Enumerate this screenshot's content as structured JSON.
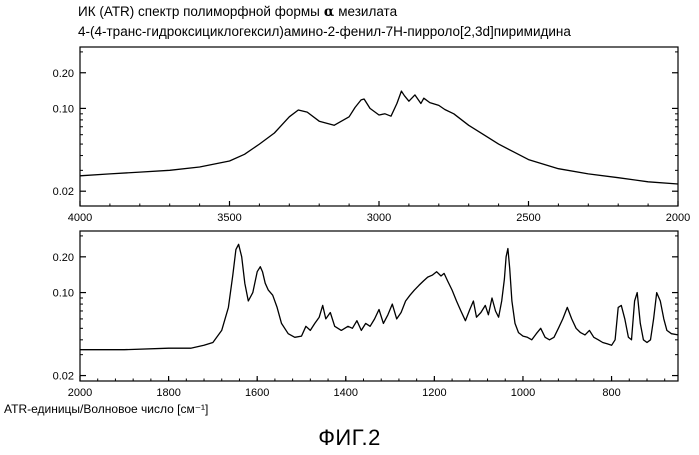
{
  "title_line1_prefix": "ИК (ATR) спектр полиморфной формы",
  "title_line1_symbol": "α",
  "title_line1_suffix": "мезилата",
  "title_line2": "4-(4-транс-гидроксициклогексил)амино-2-фенил-7Н-пирроло[2,3d]пиримидина",
  "x_axis_unit_label": "ATR-единицы/Волновое число [см⁻¹]",
  "figure_caption": "ФИГ.2",
  "chart_data": [
    {
      "type": "line",
      "xlim": [
        4000,
        2000
      ],
      "ylim": [
        0.015,
        0.33
      ],
      "y_scale": "log",
      "grid": false,
      "x_ticks": [
        4000,
        3500,
        3000,
        2500,
        2000
      ],
      "x_tick_labels": [
        "4000",
        "3500",
        "3000",
        "2500",
        "2000"
      ],
      "y_ticks": [
        0.02,
        0.1,
        0.2
      ],
      "y_tick_labels": [
        "0.02",
        "0.10",
        "0.20"
      ],
      "series": [
        {
          "x": [
            4000,
            3900,
            3800,
            3700,
            3600,
            3500,
            3450,
            3400,
            3350,
            3300,
            3270,
            3240,
            3200,
            3150,
            3100,
            3080,
            3060,
            3050,
            3030,
            3000,
            2980,
            2960,
            2940,
            2925,
            2915,
            2900,
            2880,
            2860,
            2850,
            2830,
            2800,
            2780,
            2750,
            2700,
            2650,
            2600,
            2550,
            2500,
            2400,
            2300,
            2200,
            2100,
            2000
          ],
          "y": [
            0.027,
            0.028,
            0.029,
            0.03,
            0.032,
            0.036,
            0.041,
            0.05,
            0.062,
            0.085,
            0.097,
            0.093,
            0.078,
            0.072,
            0.085,
            0.102,
            0.118,
            0.12,
            0.1,
            0.088,
            0.09,
            0.086,
            0.11,
            0.14,
            0.128,
            0.115,
            0.13,
            0.11,
            0.122,
            0.112,
            0.106,
            0.098,
            0.09,
            0.072,
            0.06,
            0.05,
            0.043,
            0.037,
            0.031,
            0.028,
            0.026,
            0.024,
            0.023
          ]
        }
      ]
    },
    {
      "type": "line",
      "xlim": [
        2000,
        650
      ],
      "ylim": [
        0.018,
        0.33
      ],
      "y_scale": "log",
      "grid": false,
      "x_ticks": [
        2000,
        1800,
        1600,
        1400,
        1200,
        1000,
        800
      ],
      "x_tick_labels": [
        "2000",
        "1800",
        "1600",
        "1400",
        "1200",
        "1000",
        "800"
      ],
      "y_ticks": [
        0.02,
        0.1,
        0.2
      ],
      "y_tick_labels": [
        "0.02",
        "0.10",
        "0.20"
      ],
      "series": [
        {
          "x": [
            2000,
            1900,
            1800,
            1750,
            1720,
            1700,
            1680,
            1665,
            1655,
            1648,
            1642,
            1635,
            1628,
            1620,
            1610,
            1600,
            1593,
            1588,
            1582,
            1575,
            1565,
            1555,
            1545,
            1530,
            1515,
            1500,
            1490,
            1480,
            1470,
            1460,
            1452,
            1445,
            1435,
            1425,
            1410,
            1395,
            1385,
            1375,
            1365,
            1355,
            1345,
            1335,
            1325,
            1315,
            1305,
            1295,
            1285,
            1275,
            1265,
            1255,
            1245,
            1235,
            1225,
            1215,
            1205,
            1195,
            1185,
            1178,
            1170,
            1160,
            1150,
            1140,
            1130,
            1120,
            1112,
            1105,
            1095,
            1085,
            1078,
            1070,
            1062,
            1055,
            1048,
            1042,
            1038,
            1034,
            1030,
            1025,
            1018,
            1010,
            1000,
            990,
            980,
            970,
            960,
            950,
            940,
            930,
            920,
            910,
            900,
            890,
            880,
            870,
            860,
            850,
            840,
            830,
            820,
            810,
            800,
            792,
            785,
            778,
            770,
            762,
            755,
            748,
            742,
            735,
            728,
            720,
            712,
            705,
            698,
            690,
            682,
            675,
            665,
            650
          ],
          "y": [
            0.033,
            0.033,
            0.034,
            0.034,
            0.036,
            0.038,
            0.048,
            0.075,
            0.14,
            0.23,
            0.255,
            0.2,
            0.12,
            0.085,
            0.1,
            0.15,
            0.165,
            0.15,
            0.12,
            0.105,
            0.095,
            0.075,
            0.055,
            0.045,
            0.042,
            0.043,
            0.052,
            0.048,
            0.055,
            0.062,
            0.078,
            0.06,
            0.068,
            0.052,
            0.048,
            0.052,
            0.05,
            0.058,
            0.048,
            0.055,
            0.052,
            0.06,
            0.072,
            0.055,
            0.065,
            0.08,
            0.06,
            0.068,
            0.085,
            0.095,
            0.105,
            0.115,
            0.125,
            0.135,
            0.14,
            0.15,
            0.138,
            0.145,
            0.125,
            0.105,
            0.085,
            0.07,
            0.058,
            0.072,
            0.085,
            0.062,
            0.068,
            0.078,
            0.065,
            0.09,
            0.07,
            0.062,
            0.085,
            0.13,
            0.2,
            0.235,
            0.16,
            0.085,
            0.055,
            0.046,
            0.043,
            0.042,
            0.04,
            0.045,
            0.05,
            0.042,
            0.04,
            0.042,
            0.05,
            0.06,
            0.075,
            0.06,
            0.05,
            0.046,
            0.044,
            0.048,
            0.042,
            0.04,
            0.038,
            0.037,
            0.036,
            0.04,
            0.075,
            0.078,
            0.06,
            0.042,
            0.04,
            0.085,
            0.1,
            0.055,
            0.04,
            0.038,
            0.04,
            0.06,
            0.1,
            0.085,
            0.06,
            0.048,
            0.045,
            0.044
          ]
        }
      ]
    }
  ]
}
